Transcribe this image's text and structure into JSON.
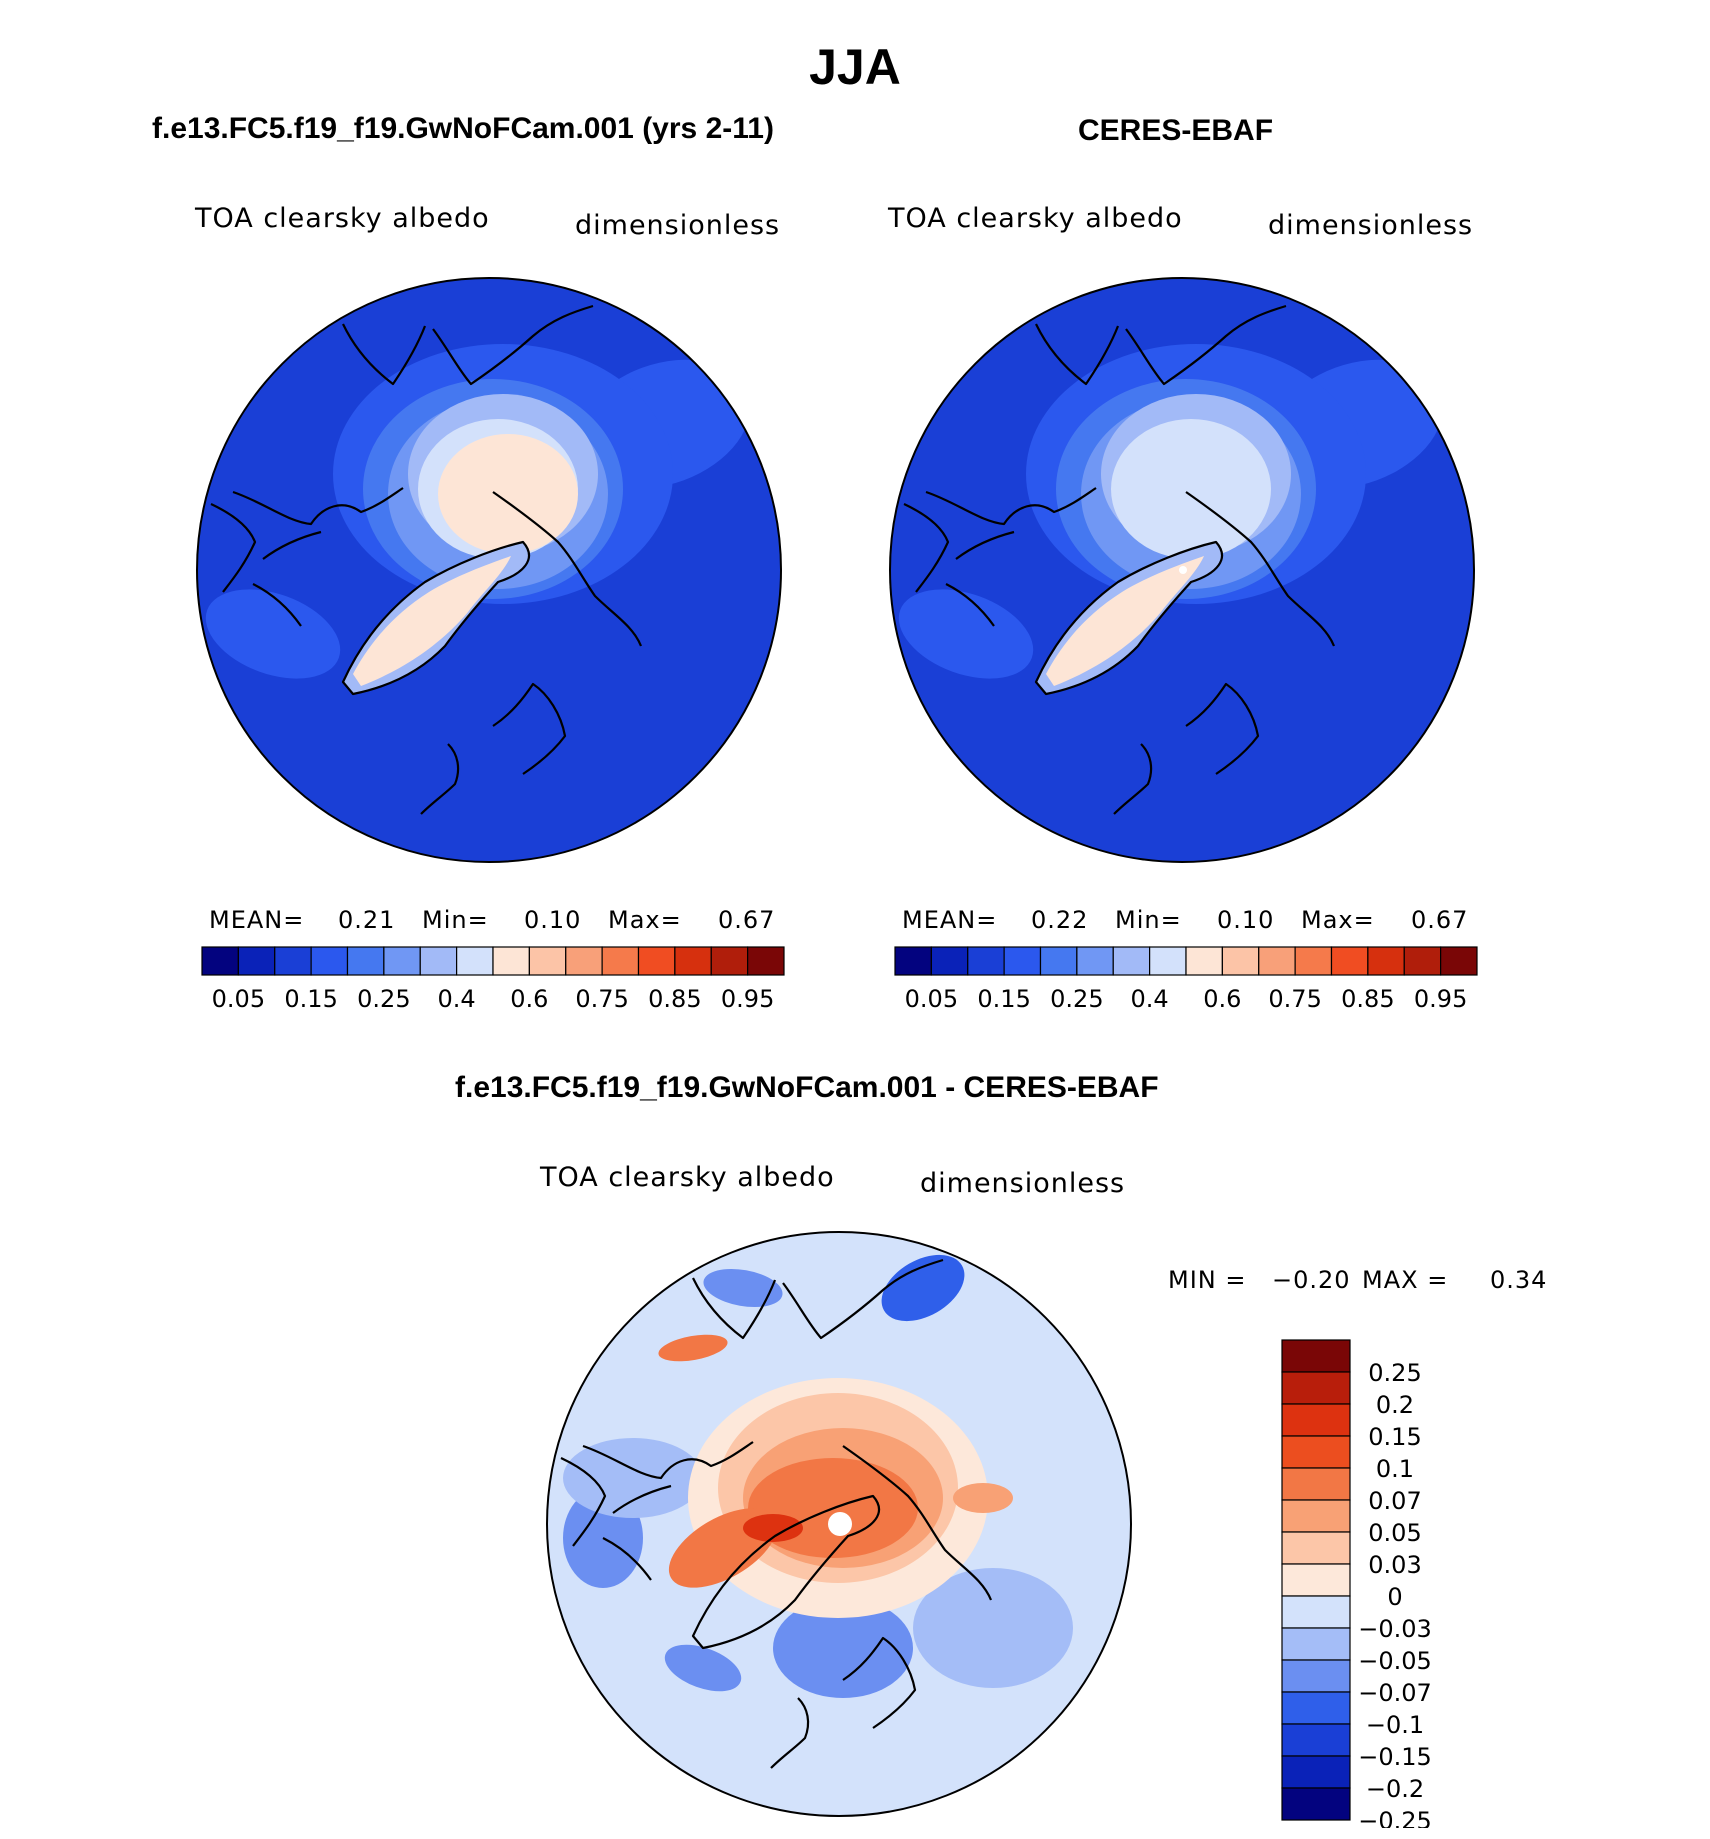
{
  "title": "JJA",
  "colors": {
    "abs_palette": [
      "#03037f",
      "#0a22b8",
      "#1a3fd6",
      "#2b58ee",
      "#4578f0",
      "#7097f4",
      "#a2baf7",
      "#d3e1fb",
      "#fde5d6",
      "#fcc4a7",
      "#f8a079",
      "#f57a4b",
      "#f04d22",
      "#d6300e",
      "#b01e0b",
      "#7a0606"
    ],
    "diff_palette": [
      "#03037f",
      "#0a22b8",
      "#1a3fd6",
      "#2f5fea",
      "#6b8ff1",
      "#a4bdf7",
      "#d3e2fb",
      "#fde8da",
      "#fcc6a8",
      "#f8a175",
      "#f27745",
      "#ec4e1f",
      "#dd3210",
      "#b81e0b",
      "#7a0606"
    ],
    "land_outline": "#000000"
  },
  "chart_data": [
    {
      "type": "heatmap",
      "projection": "north-polar-stereographic",
      "panel_title": "f.e13.FC5.f19_f19.GwNoFCam.001 (yrs 2-11)",
      "variable": "TOA clearsky albedo",
      "units": "dimensionless",
      "stats": {
        "mean_label": "MEAN=",
        "mean": "0.21",
        "min_label": "Min=",
        "min": "0.10",
        "max_label": "Max=",
        "max": "0.67"
      },
      "colorbar": {
        "orientation": "horizontal",
        "levels": [
          0.05,
          0.1,
          0.15,
          0.2,
          0.25,
          0.3,
          0.4,
          0.5,
          0.6,
          0.7,
          0.75,
          0.8,
          0.85,
          0.9,
          0.95
        ],
        "tick_labels": [
          "0.05",
          "0.15",
          "0.25",
          "0.4",
          "0.6",
          "0.75",
          "0.85",
          "0.95"
        ]
      }
    },
    {
      "type": "heatmap",
      "projection": "north-polar-stereographic",
      "panel_title": "CERES-EBAF",
      "variable": "TOA clearsky albedo",
      "units": "dimensionless",
      "stats": {
        "mean_label": "MEAN=",
        "mean": "0.22",
        "min_label": "Min=",
        "min": "0.10",
        "max_label": "Max=",
        "max": "0.67"
      },
      "colorbar": {
        "orientation": "horizontal",
        "levels": [
          0.05,
          0.1,
          0.15,
          0.2,
          0.25,
          0.3,
          0.4,
          0.5,
          0.6,
          0.7,
          0.75,
          0.8,
          0.85,
          0.9,
          0.95
        ],
        "tick_labels": [
          "0.05",
          "0.15",
          "0.25",
          "0.4",
          "0.6",
          "0.75",
          "0.85",
          "0.95"
        ]
      }
    },
    {
      "type": "heatmap",
      "projection": "north-polar-stereographic",
      "panel_title": "f.e13.FC5.f19_f19.GwNoFCam.001 - CERES-EBAF",
      "variable": "TOA clearsky albedo",
      "units": "dimensionless",
      "stats": {
        "min_label": "MIN =",
        "min": "−0.20",
        "max_label": "MAX =",
        "max": "0.34"
      },
      "colorbar": {
        "orientation": "vertical",
        "tick_labels": [
          "0.25",
          "0.2",
          "0.15",
          "0.1",
          "0.07",
          "0.05",
          "0.03",
          "0",
          "−0.03",
          "−0.05",
          "−0.07",
          "−0.1",
          "−0.15",
          "−0.2",
          "−0.25"
        ]
      }
    }
  ]
}
